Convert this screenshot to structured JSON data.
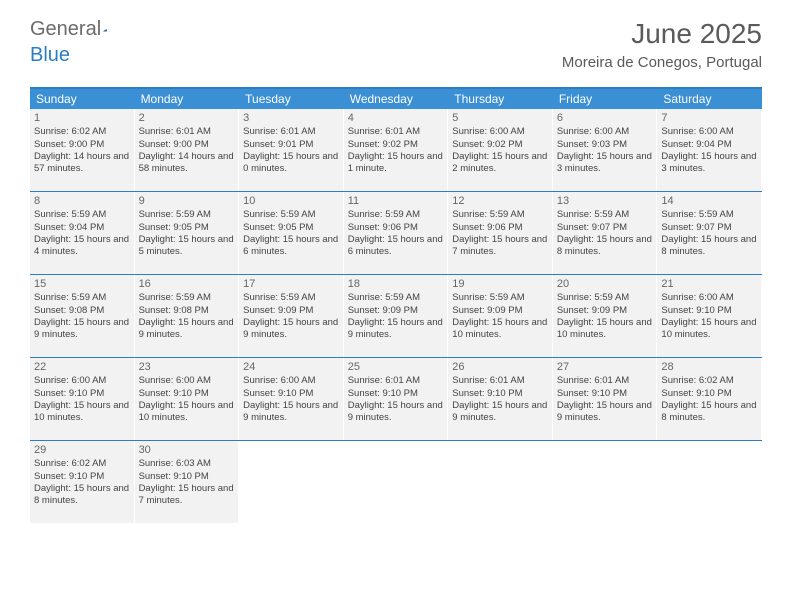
{
  "logo": {
    "part1": "General",
    "part2": "Blue"
  },
  "title": "June 2025",
  "location": "Moreira de Conegos, Portugal",
  "header_bg": "#3b8fd4",
  "border_color": "#2b7dc4",
  "cell_bg": "#f2f2f2",
  "dayNames": [
    "Sunday",
    "Monday",
    "Tuesday",
    "Wednesday",
    "Thursday",
    "Friday",
    "Saturday"
  ],
  "weeks": [
    [
      {
        "n": "1",
        "sr": "6:02 AM",
        "ss": "9:00 PM",
        "dl": "14 hours and 57 minutes."
      },
      {
        "n": "2",
        "sr": "6:01 AM",
        "ss": "9:00 PM",
        "dl": "14 hours and 58 minutes."
      },
      {
        "n": "3",
        "sr": "6:01 AM",
        "ss": "9:01 PM",
        "dl": "15 hours and 0 minutes."
      },
      {
        "n": "4",
        "sr": "6:01 AM",
        "ss": "9:02 PM",
        "dl": "15 hours and 1 minute."
      },
      {
        "n": "5",
        "sr": "6:00 AM",
        "ss": "9:02 PM",
        "dl": "15 hours and 2 minutes."
      },
      {
        "n": "6",
        "sr": "6:00 AM",
        "ss": "9:03 PM",
        "dl": "15 hours and 3 minutes."
      },
      {
        "n": "7",
        "sr": "6:00 AM",
        "ss": "9:04 PM",
        "dl": "15 hours and 3 minutes."
      }
    ],
    [
      {
        "n": "8",
        "sr": "5:59 AM",
        "ss": "9:04 PM",
        "dl": "15 hours and 4 minutes."
      },
      {
        "n": "9",
        "sr": "5:59 AM",
        "ss": "9:05 PM",
        "dl": "15 hours and 5 minutes."
      },
      {
        "n": "10",
        "sr": "5:59 AM",
        "ss": "9:05 PM",
        "dl": "15 hours and 6 minutes."
      },
      {
        "n": "11",
        "sr": "5:59 AM",
        "ss": "9:06 PM",
        "dl": "15 hours and 6 minutes."
      },
      {
        "n": "12",
        "sr": "5:59 AM",
        "ss": "9:06 PM",
        "dl": "15 hours and 7 minutes."
      },
      {
        "n": "13",
        "sr": "5:59 AM",
        "ss": "9:07 PM",
        "dl": "15 hours and 8 minutes."
      },
      {
        "n": "14",
        "sr": "5:59 AM",
        "ss": "9:07 PM",
        "dl": "15 hours and 8 minutes."
      }
    ],
    [
      {
        "n": "15",
        "sr": "5:59 AM",
        "ss": "9:08 PM",
        "dl": "15 hours and 9 minutes."
      },
      {
        "n": "16",
        "sr": "5:59 AM",
        "ss": "9:08 PM",
        "dl": "15 hours and 9 minutes."
      },
      {
        "n": "17",
        "sr": "5:59 AM",
        "ss": "9:09 PM",
        "dl": "15 hours and 9 minutes."
      },
      {
        "n": "18",
        "sr": "5:59 AM",
        "ss": "9:09 PM",
        "dl": "15 hours and 9 minutes."
      },
      {
        "n": "19",
        "sr": "5:59 AM",
        "ss": "9:09 PM",
        "dl": "15 hours and 10 minutes."
      },
      {
        "n": "20",
        "sr": "5:59 AM",
        "ss": "9:09 PM",
        "dl": "15 hours and 10 minutes."
      },
      {
        "n": "21",
        "sr": "6:00 AM",
        "ss": "9:10 PM",
        "dl": "15 hours and 10 minutes."
      }
    ],
    [
      {
        "n": "22",
        "sr": "6:00 AM",
        "ss": "9:10 PM",
        "dl": "15 hours and 10 minutes."
      },
      {
        "n": "23",
        "sr": "6:00 AM",
        "ss": "9:10 PM",
        "dl": "15 hours and 10 minutes."
      },
      {
        "n": "24",
        "sr": "6:00 AM",
        "ss": "9:10 PM",
        "dl": "15 hours and 9 minutes."
      },
      {
        "n": "25",
        "sr": "6:01 AM",
        "ss": "9:10 PM",
        "dl": "15 hours and 9 minutes."
      },
      {
        "n": "26",
        "sr": "6:01 AM",
        "ss": "9:10 PM",
        "dl": "15 hours and 9 minutes."
      },
      {
        "n": "27",
        "sr": "6:01 AM",
        "ss": "9:10 PM",
        "dl": "15 hours and 9 minutes."
      },
      {
        "n": "28",
        "sr": "6:02 AM",
        "ss": "9:10 PM",
        "dl": "15 hours and 8 minutes."
      }
    ],
    [
      {
        "n": "29",
        "sr": "6:02 AM",
        "ss": "9:10 PM",
        "dl": "15 hours and 8 minutes."
      },
      {
        "n": "30",
        "sr": "6:03 AM",
        "ss": "9:10 PM",
        "dl": "15 hours and 7 minutes."
      },
      null,
      null,
      null,
      null,
      null
    ]
  ],
  "labels": {
    "sunrise": "Sunrise:",
    "sunset": "Sunset:",
    "daylight": "Daylight:"
  }
}
